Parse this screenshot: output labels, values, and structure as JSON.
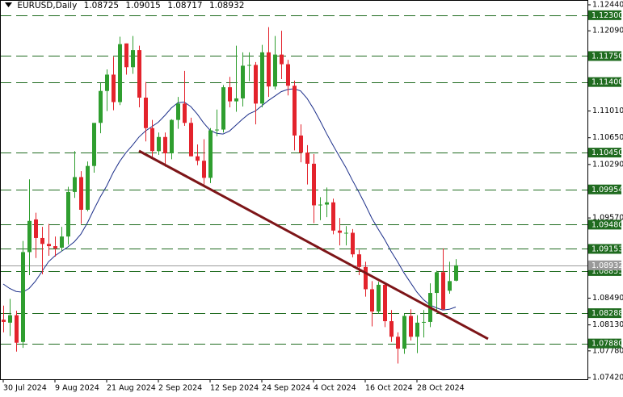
{
  "chart_data": {
    "type": "candlestick",
    "title": "EURUSD,Daily",
    "up_color": "#2f9e2f",
    "down_color": "#e3232c",
    "categories": [
      "30 Jul 2024",
      null,
      null,
      null,
      null,
      null,
      null,
      null,
      "9 Aug 2024",
      null,
      null,
      null,
      null,
      null,
      null,
      null,
      "21 Aug 2024",
      null,
      null,
      null,
      null,
      null,
      null,
      null,
      "2 Sep 2024",
      null,
      null,
      null,
      null,
      null,
      null,
      null,
      "12 Sep 2024",
      null,
      null,
      null,
      null,
      null,
      null,
      null,
      "24 Sep 2024",
      null,
      null,
      null,
      null,
      null,
      null,
      null,
      "4 Oct 2024",
      null,
      null,
      null,
      null,
      null,
      null,
      null,
      "16 Oct 2024",
      null,
      null,
      null,
      null,
      null,
      null,
      null,
      "28 Oct 2024",
      null,
      null,
      null,
      null,
      null,
      null
    ],
    "open": [
      1.082,
      1.0816,
      1.0826,
      1.079,
      1.0911,
      1.0955,
      1.093,
      1.0922,
      1.0919,
      1.0917,
      1.0932,
      1.0992,
      1.1012,
      1.0968,
      1.1027,
      1.1085,
      1.1128,
      1.115,
      1.1113,
      1.1192,
      1.116,
      1.1183,
      1.1119,
      1.1078,
      1.1047,
      1.1066,
      1.1044,
      1.1089,
      1.1111,
      1.1085,
      1.104,
      1.1034,
      1.1011,
      1.1075,
      1.1076,
      1.1133,
      1.1114,
      1.1118,
      1.1162,
      1.1163,
      1.1111,
      1.118,
      1.1134,
      1.1177,
      1.1164,
      1.1135,
      1.1068,
      1.1045,
      1.103,
      1.0974,
      1.0975,
      1.0978,
      1.094,
      1.0937,
      1.0937,
      1.0908,
      1.0891,
      1.0861,
      1.0831,
      1.0867,
      1.0818,
      1.0797,
      1.0781,
      1.0825,
      1.0797,
      1.0816,
      1.0817,
      1.0856,
      1.0884,
      1.0859,
      1.08725
    ],
    "high": [
      1.0839,
      1.0848,
      1.0832,
      1.0926,
      1.1009,
      1.0964,
      1.0945,
      1.0949,
      1.0932,
      1.0945,
      1.0999,
      1.1047,
      1.102,
      1.1033,
      1.1084,
      1.1139,
      1.1157,
      1.1174,
      1.1201,
      1.1192,
      1.1202,
      1.1189,
      1.114,
      1.1089,
      1.1072,
      1.1072,
      1.109,
      1.112,
      1.1155,
      1.1092,
      1.1056,
      1.1063,
      1.1078,
      1.1103,
      1.1136,
      1.1147,
      1.1189,
      1.118,
      1.118,
      1.1167,
      1.119,
      1.1214,
      1.1202,
      1.1209,
      1.117,
      1.1142,
      1.1083,
      1.1055,
      1.1043,
      1.0985,
      1.0998,
      1.0983,
      1.0957,
      1.0946,
      1.0942,
      1.0914,
      1.0898,
      1.0872,
      1.0871,
      1.0869,
      1.0833,
      1.0803,
      1.0828,
      1.0834,
      1.0826,
      1.0833,
      1.0869,
      1.0886,
      1.0916,
      1.0898,
      1.09015
    ],
    "low": [
      1.0803,
      1.0798,
      1.0777,
      1.0782,
      1.088,
      1.0903,
      1.0881,
      1.0906,
      1.0905,
      1.0912,
      1.0921,
      1.0984,
      1.0949,
      1.0966,
      1.1018,
      1.1071,
      1.1101,
      1.1102,
      1.1109,
      1.115,
      1.1151,
      1.1106,
      1.106,
      1.1037,
      1.1042,
      1.1026,
      1.1036,
      1.1077,
      1.1081,
      1.104,
      1.1028,
      1.1002,
      1.1004,
      1.1067,
      1.1072,
      1.1106,
      1.11,
      1.1107,
      1.1141,
      1.1083,
      1.1106,
      1.112,
      1.113,
      1.1144,
      1.1122,
      1.1048,
      1.1032,
      1.1002,
      1.095,
      1.0954,
      1.0958,
      1.0935,
      1.092,
      1.092,
      1.0904,
      1.088,
      1.0851,
      1.0811,
      1.0828,
      1.081,
      1.079,
      1.0761,
      1.0774,
      1.0792,
      1.0775,
      1.0796,
      1.081,
      1.083,
      1.0833,
      1.0855,
      1.08717
    ],
    "close": [
      1.0817,
      1.0826,
      1.0789,
      1.0911,
      1.0953,
      1.093,
      1.0922,
      1.0919,
      1.0916,
      1.0932,
      1.0992,
      1.1012,
      1.0968,
      1.1027,
      1.1085,
      1.1128,
      1.115,
      1.1113,
      1.1191,
      1.116,
      1.1183,
      1.1119,
      1.1078,
      1.1047,
      1.1066,
      1.1044,
      1.1089,
      1.1111,
      1.1085,
      1.104,
      1.1034,
      1.1011,
      1.1075,
      1.1076,
      1.1133,
      1.1114,
      1.1118,
      1.1162,
      1.1163,
      1.1111,
      1.118,
      1.1134,
      1.1177,
      1.1164,
      1.1135,
      1.1068,
      1.1045,
      1.103,
      1.0974,
      1.0975,
      1.0978,
      1.094,
      1.0937,
      1.0937,
      1.0908,
      1.0891,
      1.0861,
      1.0831,
      1.0867,
      1.0818,
      1.0797,
      1.0781,
      1.0825,
      1.0797,
      1.0816,
      1.0817,
      1.0856,
      1.0884,
      1.0834,
      1.0872,
      1.08932
    ],
    "moving_average": {
      "color": "#1c2f8a",
      "values": [
        1.0868,
        1.0862,
        1.0858,
        1.0857,
        1.0862,
        1.0872,
        1.0885,
        1.0898,
        1.0906,
        1.0912,
        1.0918,
        1.0925,
        1.0935,
        1.095,
        1.0968,
        1.0985,
        1.1,
        1.1018,
        1.1033,
        1.1045,
        1.1055,
        1.1066,
        1.1074,
        1.108,
        1.1086,
        1.1095,
        1.1105,
        1.1112,
        1.1113,
        1.1107,
        1.1097,
        1.1085,
        1.1075,
        1.1071,
        1.107,
        1.1074,
        1.1082,
        1.109,
        1.1097,
        1.1101,
        1.1108,
        1.1115,
        1.1121,
        1.1127,
        1.113,
        1.1131,
        1.1128,
        1.1118,
        1.1104,
        1.1088,
        1.1071,
        1.1055,
        1.104,
        1.1025,
        1.1008,
        1.0992,
        1.0975,
        1.0957,
        1.0942,
        1.0928,
        1.0912,
        1.0898,
        1.0883,
        1.087,
        1.0857,
        1.0847,
        1.084,
        1.0836,
        1.0833,
        1.0834,
        1.0837
      ]
    },
    "trendline": {
      "color": "#7d1518",
      "x": [
        21,
        75
      ],
      "values": [
        1.10473,
        1.07942
      ]
    },
    "level_color": "#1f6b1f",
    "current_price_color": "#9a9a9a",
    "levels": [
      {
        "value": 1.123,
        "label": "1.12300"
      },
      {
        "value": 1.1175,
        "label": "1.11750"
      },
      {
        "value": 1.114,
        "label": "1.11400"
      },
      {
        "value": 1.1045,
        "label": "1.10450"
      },
      1.09954,
      {
        "value": 1.0948,
        "label": "1.09480"
      },
      1.09153,
      1.08855,
      1.08288,
      {
        "value": 1.0788,
        "label": "1.07880"
      }
    ],
    "ylim": [
      1.07398,
      1.12483
    ],
    "yticks": [
      {
        "value": 1.1244,
        "label": "1.12440"
      },
      {
        "value": 1.1209,
        "label": "1.12090"
      },
      {
        "value": 1.1101,
        "label": "1.11010"
      },
      {
        "value": 1.1065,
        "label": "1.10650"
      },
      {
        "value": 1.1029,
        "label": "1.10290"
      },
      {
        "value": 1.0957,
        "label": "1.09570"
      },
      {
        "value": 1.0849,
        "label": "1.08490"
      },
      {
        "value": 1.0813,
        "label": "1.08130"
      },
      {
        "value": 1.0778,
        "label": "1.07780"
      },
      {
        "value": 1.0742,
        "label": "1.07420"
      }
    ]
  }
}
